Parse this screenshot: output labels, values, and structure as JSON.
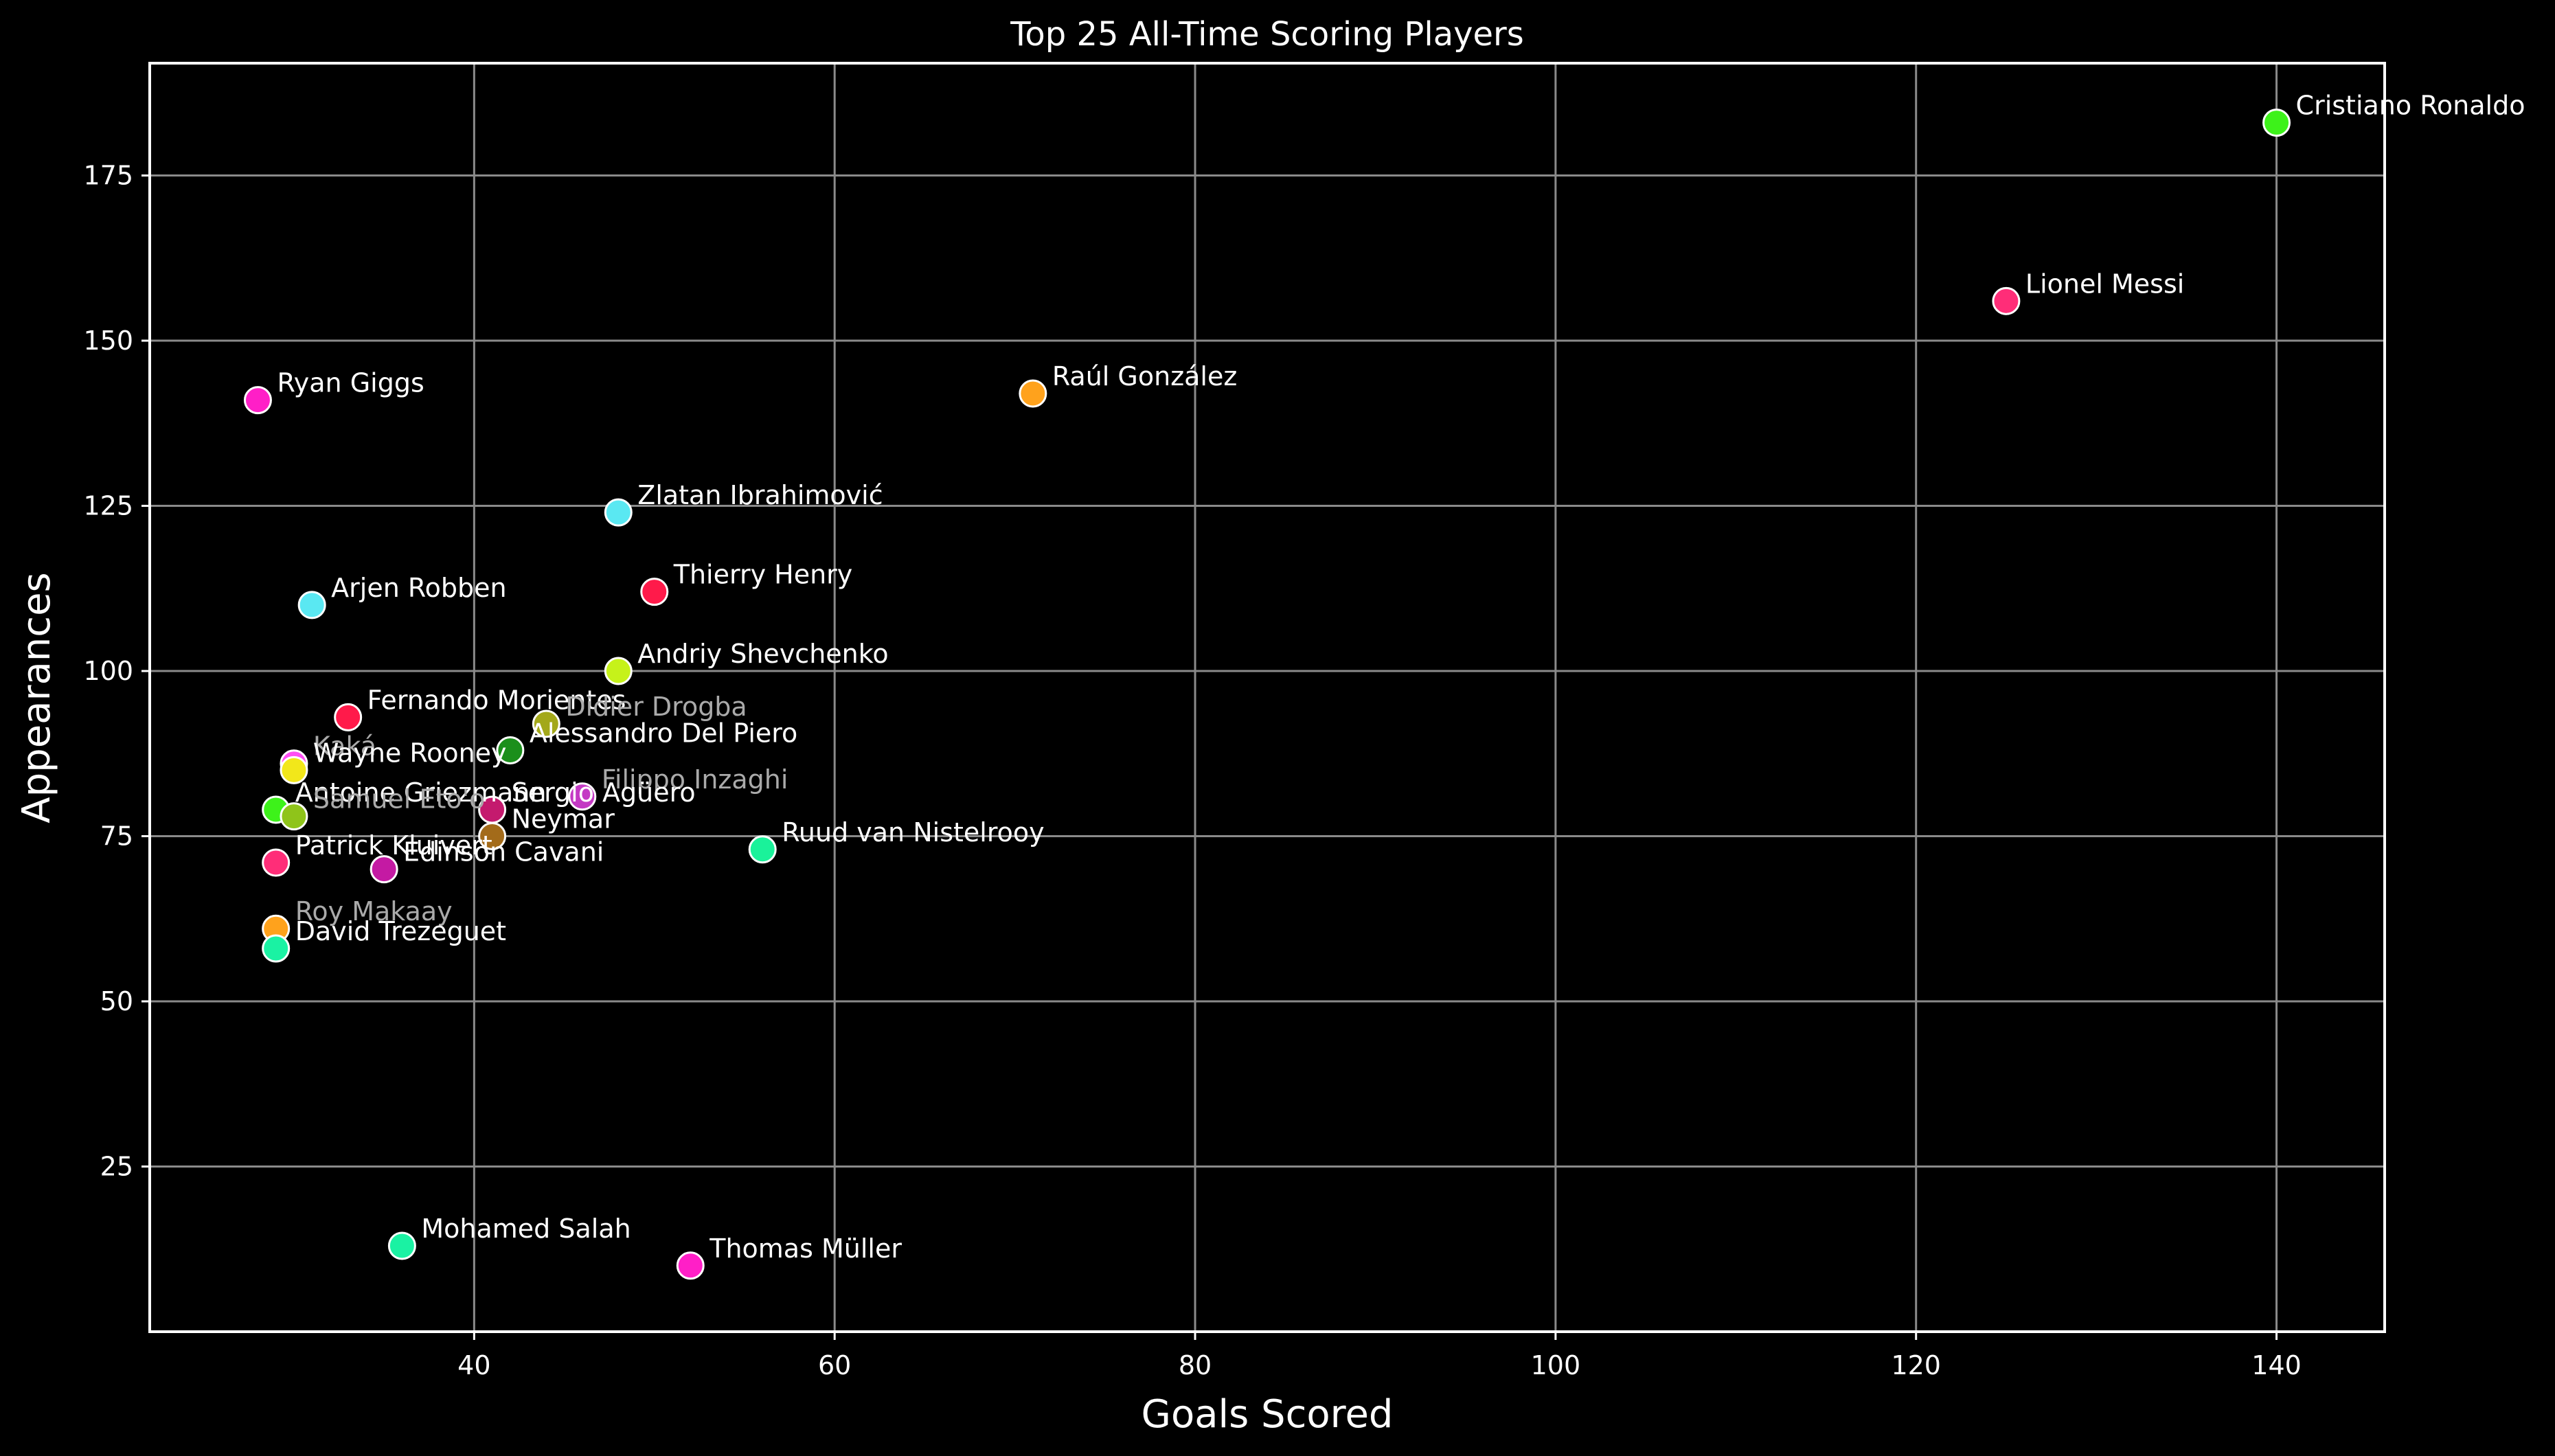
{
  "chart_data": {
    "type": "scatter",
    "title": "Top 25 All-Time Scoring Players",
    "xlabel": "Goals Scored",
    "ylabel": "Appearances",
    "xlim": [
      22,
      146
    ],
    "ylim": [
      0,
      192
    ],
    "xticks": [
      40,
      60,
      80,
      100,
      120,
      140
    ],
    "yticks": [
      25,
      50,
      75,
      100,
      125,
      150,
      175
    ],
    "grid": true,
    "legend": "none",
    "points": [
      {
        "label": "Cristiano Ronaldo",
        "x": 140,
        "y": 183,
        "color": "#3df21a",
        "label_color": "#ffffff"
      },
      {
        "label": "Lionel Messi",
        "x": 125,
        "y": 156,
        "color": "#ff2d78",
        "label_color": "#ffffff"
      },
      {
        "label": "Raúl González",
        "x": 71,
        "y": 142,
        "color": "#ffa21c",
        "label_color": "#ffffff"
      },
      {
        "label": "Ryan Giggs",
        "x": 28,
        "y": 141,
        "color": "#ff1fc7",
        "label_color": "#ffffff"
      },
      {
        "label": "Zlatan Ibrahimović",
        "x": 48,
        "y": 124,
        "color": "#5ae8f2",
        "label_color": "#ffffff"
      },
      {
        "label": "Thierry Henry",
        "x": 50,
        "y": 112,
        "color": "#ff1a4a",
        "label_color": "#ffffff"
      },
      {
        "label": "Arjen Robben",
        "x": 31,
        "y": 110,
        "color": "#5ae8f2",
        "label_color": "#ffffff"
      },
      {
        "label": "Andriy Shevchenko",
        "x": 48,
        "y": 100,
        "color": "#c6f21a",
        "label_color": "#ffffff"
      },
      {
        "label": "Fernando Morientes",
        "x": 33,
        "y": 93,
        "color": "#ff1a4a",
        "label_color": "#ffffff"
      },
      {
        "label": "Didier Drogba",
        "x": 44,
        "y": 92,
        "color": "#a3a81a",
        "label_color": "#aaaaaa"
      },
      {
        "label": "Alessandro Del Piero",
        "x": 42,
        "y": 88,
        "color": "#1b8f1b",
        "label_color": "#ffffff"
      },
      {
        "label": "Kaká",
        "x": 30,
        "y": 86,
        "color": "#ff4df5",
        "label_color": "#aaaaaa"
      },
      {
        "label": "Wayne Rooney",
        "x": 30,
        "y": 85,
        "color": "#f2e71a",
        "label_color": "#ffffff"
      },
      {
        "label": "Filippo Inzaghi",
        "x": 46,
        "y": 81,
        "color": "#c43ac4",
        "label_color": "#aaaaaa"
      },
      {
        "label": "Antoine Griezmann",
        "x": 29,
        "y": 79,
        "color": "#3df21a",
        "label_color": "#ffffff"
      },
      {
        "label": "Sergio Agüero",
        "x": 41,
        "y": 79,
        "color": "#c41a6e",
        "label_color": "#ffffff"
      },
      {
        "label": "Samuel Eto'o",
        "x": 30,
        "y": 78,
        "color": "#8fc41a",
        "label_color": "#aaaaaa"
      },
      {
        "label": "Neymar",
        "x": 41,
        "y": 75,
        "color": "#a36b1a",
        "label_color": "#ffffff"
      },
      {
        "label": "Ruud van Nistelrooy",
        "x": 56,
        "y": 73,
        "color": "#1af29a",
        "label_color": "#ffffff"
      },
      {
        "label": "Patrick Kluivert",
        "x": 29,
        "y": 71,
        "color": "#ff2d78",
        "label_color": "#ffffff"
      },
      {
        "label": "Edinson Cavani",
        "x": 35,
        "y": 70,
        "color": "#c41aa3",
        "label_color": "#ffffff"
      },
      {
        "label": "Roy Makaay",
        "x": 29,
        "y": 61,
        "color": "#ffa21c",
        "label_color": "#aaaaaa"
      },
      {
        "label": "David Trezeguet",
        "x": 29,
        "y": 58,
        "color": "#1af2a3",
        "label_color": "#ffffff"
      },
      {
        "label": "Mohamed Salah",
        "x": 36,
        "y": 13,
        "color": "#1af2a3",
        "label_color": "#ffffff"
      },
      {
        "label": "Thomas Müller",
        "x": 52,
        "y": 10,
        "color": "#ff1fc7",
        "label_color": "#ffffff"
      }
    ]
  }
}
